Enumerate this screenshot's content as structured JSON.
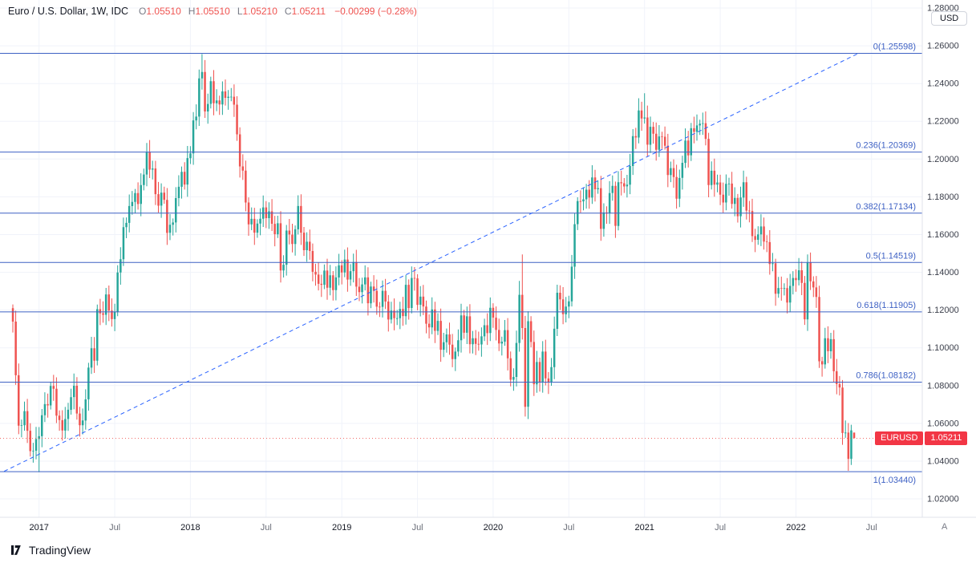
{
  "header": {
    "title": "Euro / U.S. Dollar, 1W, IDC",
    "o_label": "O",
    "o_value": "1.05510",
    "h_label": "H",
    "h_value": "1.05510",
    "l_label": "L",
    "l_value": "1.05210",
    "c_label": "C",
    "c_value": "1.05211",
    "change": "−0.00299 (−0.28%)"
  },
  "price_axis": {
    "currency": "USD"
  },
  "price_label": {
    "symbol": "EURUSD",
    "value": "1.05211"
  },
  "time_axis": {
    "auto": "A"
  },
  "footer": {
    "brand": "TradingView"
  },
  "chart_data": {
    "type": "candlestick",
    "title": "Euro / U.S. Dollar, 1W, IDC",
    "interval": "1W",
    "ylabel": "USD",
    "ylim": [
      1.02,
      1.28
    ],
    "grid": true,
    "last_price": 1.05211,
    "first_open": 1.121,
    "weekly_closes": [
      1.1139,
      1.0855,
      1.0588,
      1.059,
      1.0665,
      1.0561,
      1.0453,
      1.0455,
      1.0517,
      1.0532,
      1.0643,
      1.0702,
      1.0695,
      1.0798,
      1.0783,
      1.0641,
      1.0617,
      1.0562,
      1.0623,
      1.0672,
      1.0739,
      1.0799,
      1.0652,
      1.059,
      1.0615,
      1.0727,
      1.0895,
      1.0998,
      1.0932,
      1.1205,
      1.1183,
      1.1175,
      1.1283,
      1.1197,
      1.1152,
      1.119,
      1.1399,
      1.1469,
      1.1639,
      1.1662,
      1.1751,
      1.1773,
      1.182,
      1.1762,
      1.1862,
      1.1918,
      1.2036,
      1.1944,
      1.195,
      1.1814,
      1.1753,
      1.1822,
      1.1784,
      1.1609,
      1.1652,
      1.1664,
      1.1793,
      1.1853,
      1.1932,
      1.1865,
      1.2005,
      1.203,
      1.2205,
      1.2225,
      1.2427,
      1.2461,
      1.2252,
      1.2292,
      1.2412,
      1.2295,
      1.231,
      1.2289,
      1.2358,
      1.2324,
      1.233,
      1.233,
      1.2288,
      1.2131,
      1.1961,
      1.1939,
      1.177,
      1.1654,
      1.1683,
      1.161,
      1.1658,
      1.1684,
      1.1744,
      1.1687,
      1.1723,
      1.1657,
      1.1602,
      1.166,
      1.141,
      1.144,
      1.1621,
      1.16,
      1.155,
      1.1628,
      1.1751,
      1.161,
      1.1517,
      1.1562,
      1.1513,
      1.1403,
      1.1388,
      1.1339,
      1.1334,
      1.1409,
      1.1318,
      1.1384,
      1.1306,
      1.1373,
      1.1437,
      1.1399,
      1.1468,
      1.1362,
      1.1406,
      1.1454,
      1.1324,
      1.1295,
      1.1336,
      1.1373,
      1.1236,
      1.1325,
      1.1302,
      1.1218,
      1.1217,
      1.1302,
      1.1245,
      1.115,
      1.1197,
      1.1157,
      1.1157,
      1.1206,
      1.1168,
      1.1334,
      1.1211,
      1.137,
      1.1368,
      1.1228,
      1.1271,
      1.1219,
      1.1128,
      1.1108,
      1.1203,
      1.109,
      1.1143,
      1.099,
      1.103,
      1.1071,
      1.1017,
      1.094,
      1.098,
      1.104,
      1.1172,
      1.108,
      1.1167,
      1.1019,
      1.1051,
      1.1021,
      1.1018,
      1.1061,
      1.112,
      1.1078,
      1.1212,
      1.116,
      1.1095,
      1.1023,
      1.1033,
      1.1094,
      1.0945,
      1.0831,
      1.0846,
      1.1026,
      1.1281,
      1.1105,
      1.0688,
      1.1141,
      1.1031,
      1.0807,
      1.0925,
      1.082,
      1.098,
      1.0838,
      1.082,
      1.0898,
      1.1101,
      1.1292,
      1.1257,
      1.1178,
      1.1219,
      1.1246,
      1.143,
      1.1655,
      1.1777,
      1.1776,
      1.1787,
      1.1838,
      1.1796,
      1.1903,
      1.184,
      1.1846,
      1.163,
      1.1717,
      1.1712,
      1.182,
      1.1858,
      1.1646,
      1.1877,
      1.1872,
      1.1855,
      1.1864,
      1.1963,
      1.2121,
      1.2114,
      1.2257,
      1.2215,
      1.222,
      1.2076,
      1.2171,
      1.2134,
      1.2049,
      1.212,
      1.2118,
      1.207,
      1.1915,
      1.1952,
      1.1905,
      1.179,
      1.19,
      1.198,
      1.2098,
      1.202,
      1.2163,
      1.2144,
      1.2178,
      1.2187,
      1.219,
      1.2107,
      1.1862,
      1.1938,
      1.1864,
      1.1876,
      1.1811,
      1.177,
      1.1869,
      1.187,
      1.1762,
      1.1794,
      1.1697,
      1.1796,
      1.1877,
      1.1727,
      1.1725,
      1.1592,
      1.1572,
      1.1601,
      1.1643,
      1.1563,
      1.156,
      1.1444,
      1.1448,
      1.1287,
      1.1317,
      1.1314,
      1.1316,
      1.124,
      1.1328,
      1.137,
      1.1359,
      1.1411,
      1.1344,
      1.1151,
      1.1452,
      1.1352,
      1.132,
      1.127,
      1.0929,
      1.0912,
      1.1051,
      1.0982,
      1.1046,
      1.0876,
      1.0808,
      1.079,
      1.0549,
      1.0551,
      1.0412,
      1.0563,
      1.0521
    ],
    "overrides": {
      "9": {
        "low": 1.0341
      },
      "65": {
        "high": 1.2556
      },
      "174": {
        "high": 1.1355
      },
      "175": {
        "high": 1.1495
      },
      "176": {
        "low": 1.0636
      },
      "217": {
        "high": 1.2349
      },
      "273": {
        "high": 1.1495
      },
      "287": {
        "low": 1.0349
      },
      "289": {
        "open": 1.0551,
        "high": 1.0551,
        "low": 1.0521,
        "close": 1.05211
      }
    },
    "fib_levels": [
      {
        "label": "0(1.25598)",
        "price": 1.25598
      },
      {
        "label": "0.236(1.20369)",
        "price": 1.20369
      },
      {
        "label": "0.382(1.17134)",
        "price": 1.17134
      },
      {
        "label": "0.5(1.14519)",
        "price": 1.14519
      },
      {
        "label": "0.618(1.11905)",
        "price": 1.11905
      },
      {
        "label": "0.786(1.08182)",
        "price": 1.08182
      },
      {
        "label": "1(1.03440)",
        "price": 1.0344,
        "label_below": true
      }
    ],
    "trendline": {
      "x1_week": -3,
      "price1": 1.0346,
      "x2_week": 290.5,
      "price2": 1.256,
      "style": "dashed"
    },
    "y_ticks": [
      {
        "label": "1.28000",
        "price": 1.28
      },
      {
        "label": "1.26000",
        "price": 1.26
      },
      {
        "label": "1.24000",
        "price": 1.24
      },
      {
        "label": "1.22000",
        "price": 1.22
      },
      {
        "label": "1.20000",
        "price": 1.2
      },
      {
        "label": "1.18000",
        "price": 1.18
      },
      {
        "label": "1.16000",
        "price": 1.16
      },
      {
        "label": "1.14000",
        "price": 1.14
      },
      {
        "label": "1.12000",
        "price": 1.12
      },
      {
        "label": "1.10000",
        "price": 1.1
      },
      {
        "label": "1.08000",
        "price": 1.08
      },
      {
        "label": "1.06000",
        "price": 1.06
      },
      {
        "label": "1.04000",
        "price": 1.04
      },
      {
        "label": "1.02000",
        "price": 1.02
      }
    ],
    "x_ticks": [
      {
        "label": "2017",
        "week": 9,
        "major": true
      },
      {
        "label": "Jul",
        "week": 35,
        "major": false
      },
      {
        "label": "2018",
        "week": 61,
        "major": true
      },
      {
        "label": "Jul",
        "week": 87,
        "major": false
      },
      {
        "label": "2019",
        "week": 113,
        "major": true
      },
      {
        "label": "Jul",
        "week": 139,
        "major": false
      },
      {
        "label": "2020",
        "week": 165,
        "major": true
      },
      {
        "label": "Jul",
        "week": 191,
        "major": false
      },
      {
        "label": "2021",
        "week": 217,
        "major": true
      },
      {
        "label": "Jul",
        "week": 243,
        "major": false
      },
      {
        "label": "2022",
        "week": 269,
        "major": true
      },
      {
        "label": "Jul",
        "week": 295,
        "major": false
      }
    ],
    "colors": {
      "up": "#26a69a",
      "down": "#ef5350",
      "fib": "#3e61c4",
      "trend": "#2962ff",
      "grid": "#f0f3fa",
      "badge": "#f23645"
    }
  }
}
